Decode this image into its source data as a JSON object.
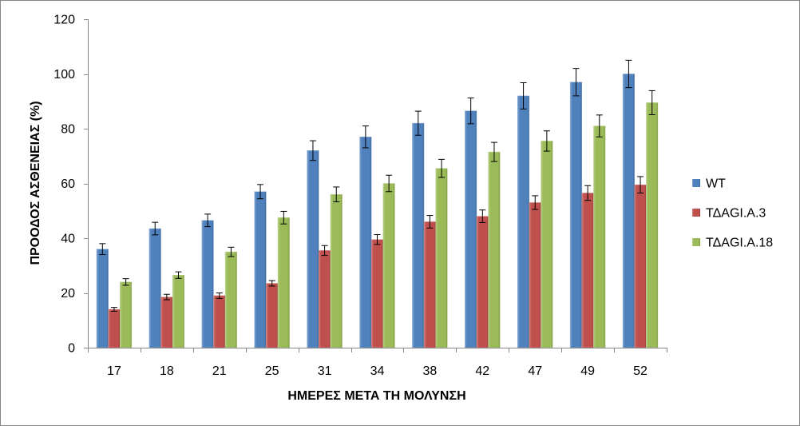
{
  "chart_data": {
    "type": "bar",
    "xlabel": "ΗΜΕΡΕΣ ΜΕΤΑ ΤΗ ΜΟΛΥΝΣΗ",
    "ylabel": "ΠΡΟΟΔΟΣ ΑΣΘΕΝΕΙΑΣ (%)",
    "categories": [
      "17",
      "18",
      "21",
      "25",
      "31",
      "34",
      "38",
      "42",
      "47",
      "49",
      "52"
    ],
    "ylim": [
      0,
      120
    ],
    "yticks": [
      0,
      20,
      40,
      60,
      80,
      100,
      120
    ],
    "grid": false,
    "legend_position": "right",
    "error_bars": true,
    "series": [
      {
        "name": "WT",
        "color": "#4F81BD",
        "values": [
          36,
          43.5,
          46.5,
          57,
          72,
          77,
          82,
          86.5,
          92,
          97,
          100
        ],
        "errors": [
          2,
          2.3,
          2.3,
          2.6,
          3.6,
          4,
          4.4,
          4.7,
          4.8,
          5,
          5
        ]
      },
      {
        "name": "ΤΔAGI.A.3",
        "color": "#C0504D",
        "values": [
          14,
          18.5,
          19,
          23.5,
          35.5,
          39.5,
          46,
          48,
          53,
          56.5,
          59.5
        ],
        "errors": [
          0.7,
          1,
          1,
          1,
          1.8,
          1.8,
          2.3,
          2.3,
          2.5,
          2.7,
          3
        ]
      },
      {
        "name": "ΤΔAGI.A.18",
        "color": "#9BBB59",
        "values": [
          24,
          26.5,
          35,
          47.5,
          56,
          60,
          65.5,
          71.5,
          75.5,
          81,
          89.5
        ],
        "errors": [
          1.2,
          1.2,
          1.7,
          2.3,
          2.7,
          3,
          3.3,
          3.5,
          3.7,
          4,
          4.4
        ]
      }
    ]
  }
}
